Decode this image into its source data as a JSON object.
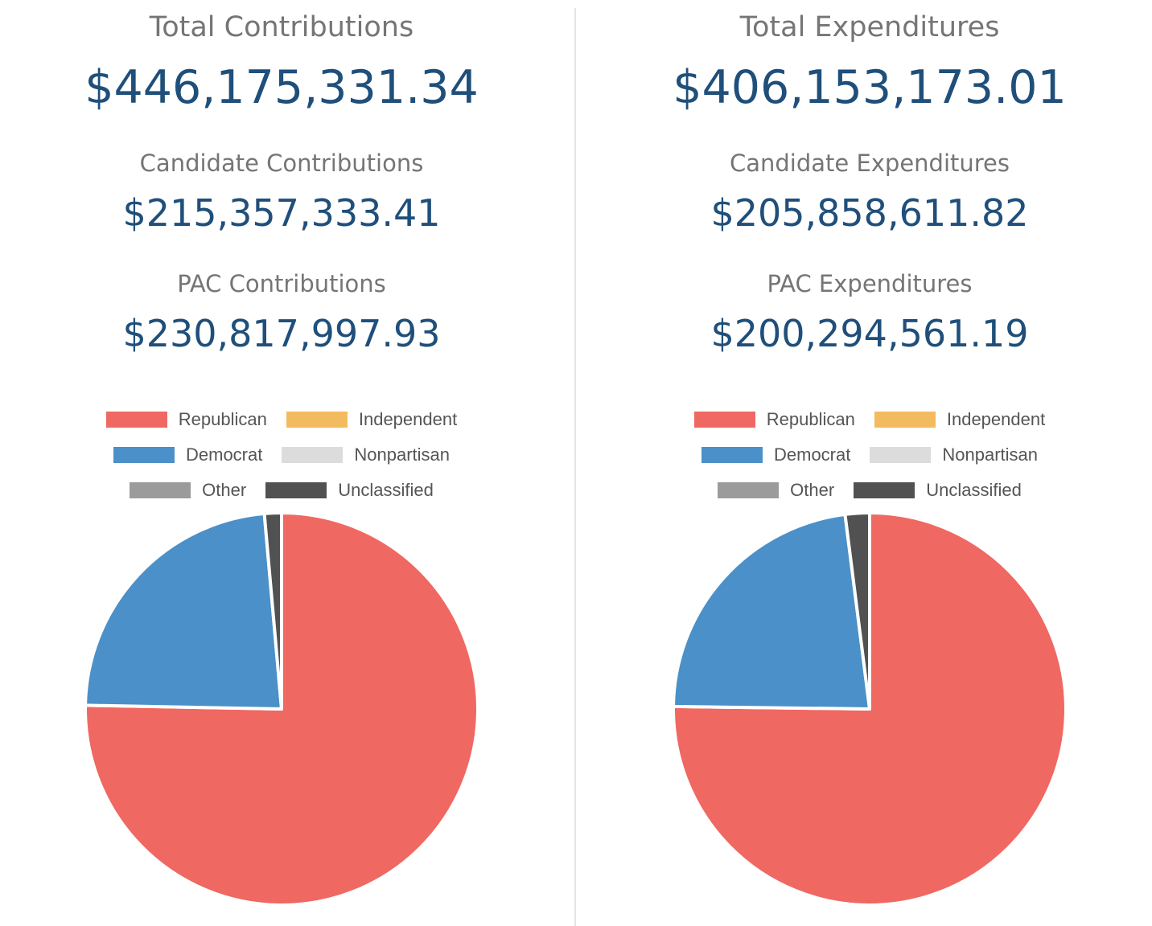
{
  "legend": [
    {
      "label": "Republican",
      "color": "#ef6861"
    },
    {
      "label": "Independent",
      "color": "#f3bb5f"
    },
    {
      "label": "Democrat",
      "color": "#4b90c8"
    },
    {
      "label": "Nonpartisan",
      "color": "#dcdcdc"
    },
    {
      "label": "Other",
      "color": "#9b9b9b"
    },
    {
      "label": "Unclassified",
      "color": "#515151"
    }
  ],
  "contributions": {
    "total_label": "Total Contributions",
    "total_value": "$446,175,331.34",
    "candidate_label": "Candidate Contributions",
    "candidate_value": "$215,357,333.41",
    "pac_label": "PAC Contributions",
    "pac_value": "$230,817,997.93"
  },
  "expenditures": {
    "total_label": "Total Expenditures",
    "total_value": "$406,153,173.01",
    "candidate_label": "Candidate Expenditures",
    "candidate_value": "$205,858,611.82",
    "pac_label": "PAC Expenditures",
    "pac_value": "$200,294,561.19"
  },
  "chart_data": [
    {
      "type": "pie",
      "categories": [
        "Republican",
        "Democrat",
        "Unclassified"
      ],
      "values": [
        75.3,
        23.3,
        1.4
      ]
    },
    {
      "type": "pie",
      "categories": [
        "Republican",
        "Democrat",
        "Unclassified"
      ],
      "values": [
        75.2,
        22.8,
        2.0
      ]
    }
  ]
}
